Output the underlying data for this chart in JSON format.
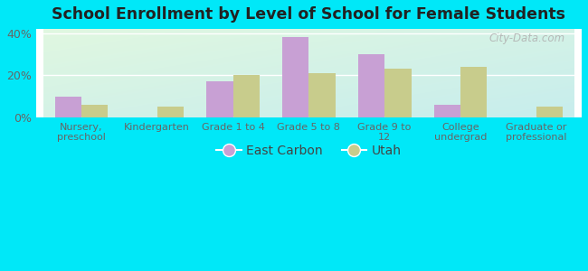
{
  "title": "School Enrollment by Level of School for Female Students",
  "categories": [
    "Nursery,\npreschool",
    "Kindergarten",
    "Grade 1 to 4",
    "Grade 5 to 8",
    "Grade 9 to\n12",
    "College\nundergrad",
    "Graduate or\nprofessional"
  ],
  "east_carbon": [
    10.0,
    0.0,
    17.0,
    38.0,
    30.0,
    6.0,
    0.0
  ],
  "utah": [
    6.0,
    5.0,
    20.0,
    21.0,
    23.0,
    24.0,
    5.0
  ],
  "bar_color_ec": "#c8a0d4",
  "bar_color_utah": "#c8cc8c",
  "background_outer": "#00e8f8",
  "yticks": [
    0,
    20,
    40
  ],
  "ylim": [
    0,
    42
  ],
  "watermark": "City-Data.com",
  "legend_ec": "East Carbon",
  "legend_utah": "Utah",
  "bar_width": 0.35,
  "grad_color_topleft": [
    0.88,
    0.97,
    0.88
  ],
  "grad_color_bottomright": [
    0.78,
    0.93,
    0.93
  ]
}
